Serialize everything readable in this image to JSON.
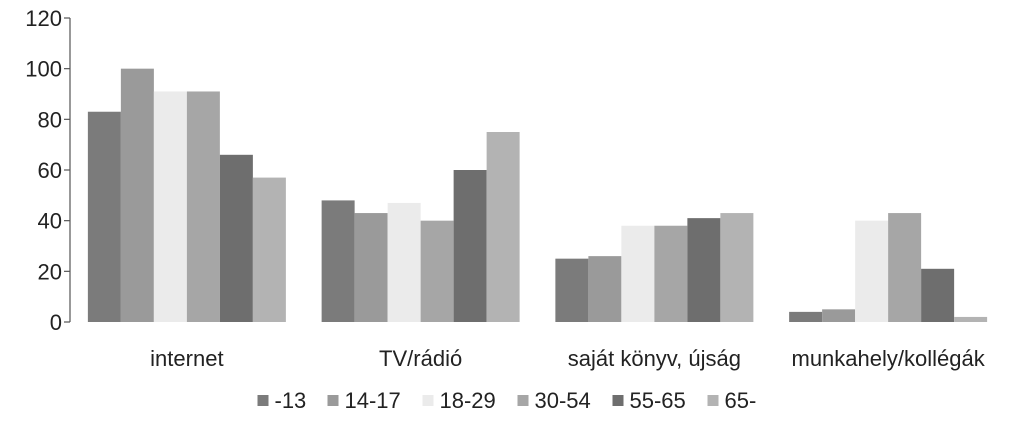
{
  "chart_data": {
    "type": "bar",
    "title": "",
    "xlabel": "",
    "ylabel": "",
    "ylim": [
      0,
      120
    ],
    "yticks": [
      "0",
      "20",
      "40",
      "60",
      "80",
      "100",
      "120"
    ],
    "grid": false,
    "legend_position": "bottom",
    "categories": [
      "internet",
      "TV/rádió",
      "saját könyv, újság",
      "munkahely/kollégák"
    ],
    "series": [
      {
        "name": "-13",
        "color": "#7b7b7b",
        "values": [
          83,
          48,
          25,
          4
        ]
      },
      {
        "name": "14-17",
        "color": "#9a9a9a",
        "values": [
          100,
          43,
          26,
          5
        ]
      },
      {
        "name": "18-29",
        "color": "#ebebeb",
        "values": [
          91,
          47,
          38,
          40
        ]
      },
      {
        "name": "30-54",
        "color": "#a6a6a6",
        "values": [
          91,
          40,
          38,
          43
        ]
      },
      {
        "name": "55-65",
        "color": "#6e6e6e",
        "values": [
          66,
          60,
          41,
          21
        ]
      },
      {
        "name": "65-",
        "color": "#b3b3b3",
        "values": [
          57,
          75,
          43,
          2
        ]
      }
    ]
  }
}
